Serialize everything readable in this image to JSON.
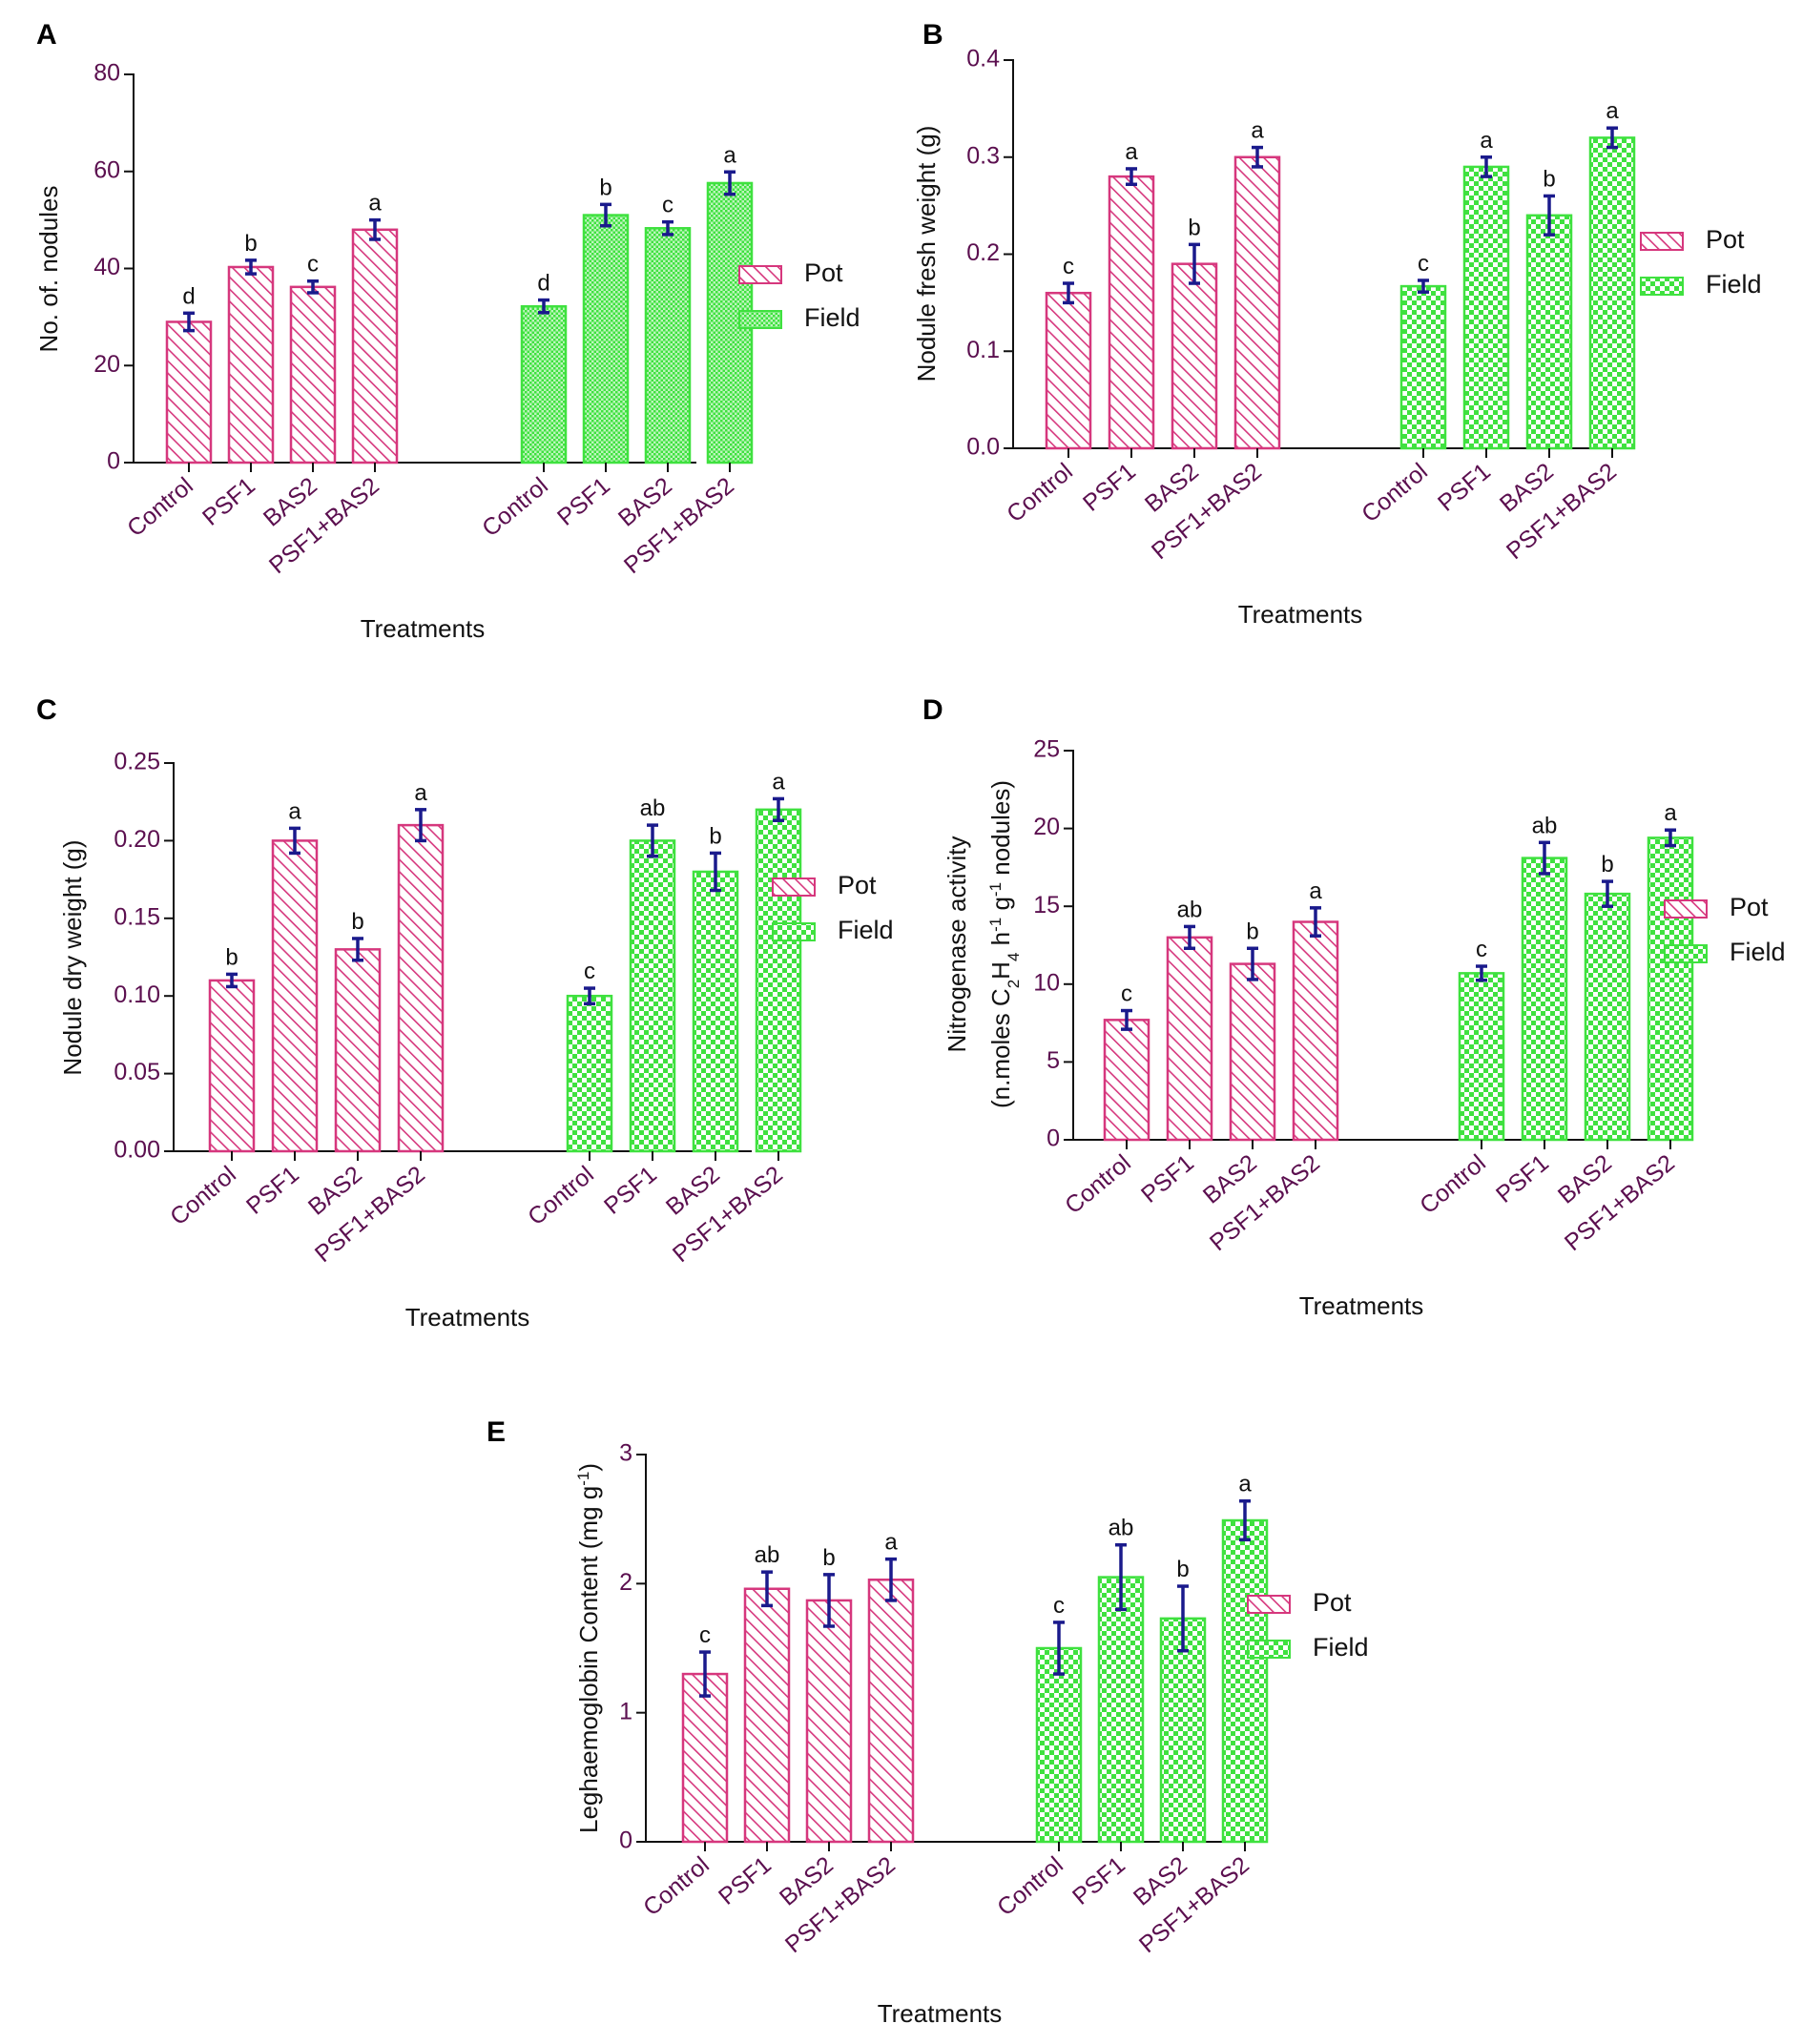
{
  "colors": {
    "pot": "#d6377d",
    "field": "#3fe13f",
    "error_bar": "#1a1a8c",
    "tick_text": "#5b0f4f"
  },
  "chart_data": [
    {
      "id": "A",
      "type": "bar",
      "panel_label": "A",
      "ylabel": "No. of. nodules",
      "xlabel": "Treatments",
      "ylim": [
        0,
        80
      ],
      "yticks": [
        "0",
        "20",
        "40",
        "60",
        "80"
      ],
      "categories": [
        "Control",
        "PSF1",
        "BAS2",
        "PSF1+BAS2"
      ],
      "field_pattern": "fine-dots",
      "series": [
        {
          "name": "Pot",
          "values": [
            29,
            40.3,
            36.2,
            48
          ],
          "errors": [
            1.8,
            1.4,
            1.2,
            2.0
          ],
          "letters": [
            "d",
            "b",
            "c",
            "a"
          ]
        },
        {
          "name": "Field",
          "values": [
            32.2,
            51,
            48.3,
            57.6
          ],
          "errors": [
            1.3,
            2.2,
            1.3,
            2.3
          ],
          "letters": [
            "d",
            "b",
            "c",
            "a"
          ]
        }
      ],
      "legend": [
        "Pot",
        "Field"
      ],
      "legend_position": "right"
    },
    {
      "id": "B",
      "type": "bar",
      "panel_label": "B",
      "ylabel": "Nodule fresh weight (g)",
      "xlabel": "Treatments",
      "ylim": [
        0,
        0.4
      ],
      "yticks": [
        "0.0",
        "0.1",
        "0.2",
        "0.3",
        "0.4"
      ],
      "categories": [
        "Control",
        "PSF1",
        "BAS2",
        "PSF1+BAS2"
      ],
      "field_pattern": "checker",
      "series": [
        {
          "name": "Pot",
          "values": [
            0.16,
            0.28,
            0.19,
            0.3
          ],
          "errors": [
            0.01,
            0.008,
            0.02,
            0.01
          ],
          "letters": [
            "c",
            "a",
            "b",
            "a"
          ]
        },
        {
          "name": "Field",
          "values": [
            0.167,
            0.29,
            0.24,
            0.32
          ],
          "errors": [
            0.006,
            0.01,
            0.02,
            0.01
          ],
          "letters": [
            "c",
            "a",
            "b",
            "a"
          ]
        }
      ],
      "legend": [
        "Pot",
        "Field"
      ],
      "legend_position": "right"
    },
    {
      "id": "C",
      "type": "bar",
      "panel_label": "C",
      "ylabel": "Nodule dry weight (g)",
      "xlabel": "Treatments",
      "ylim": [
        0,
        0.25
      ],
      "yticks": [
        "0.00",
        "0.05",
        "0.10",
        "0.15",
        "0.20",
        "0.25"
      ],
      "categories": [
        "Control",
        "PSF1",
        "BAS2",
        "PSF1+BAS2"
      ],
      "field_pattern": "checker",
      "series": [
        {
          "name": "Pot",
          "values": [
            0.11,
            0.2,
            0.13,
            0.21
          ],
          "errors": [
            0.004,
            0.008,
            0.007,
            0.01
          ],
          "letters": [
            "b",
            "a",
            "b",
            "a"
          ]
        },
        {
          "name": "Field",
          "values": [
            0.1,
            0.2,
            0.18,
            0.22
          ],
          "errors": [
            0.005,
            0.01,
            0.012,
            0.007
          ],
          "letters": [
            "c",
            "ab",
            "b",
            "a"
          ]
        }
      ],
      "legend": [
        "Pot",
        "Field"
      ],
      "legend_position": "right"
    },
    {
      "id": "D",
      "type": "bar",
      "panel_label": "D",
      "ylabel": "Nitrogenase activity",
      "ylabel2_parts": [
        {
          "t": "(n.moles C",
          "s": "n"
        },
        {
          "t": "2",
          "s": "sub"
        },
        {
          "t": "H",
          "s": "n"
        },
        {
          "t": "4",
          "s": "sub"
        },
        {
          "t": " h",
          "s": "n"
        },
        {
          "t": "-1",
          "s": "sup"
        },
        {
          "t": " g",
          "s": "n"
        },
        {
          "t": "-1",
          "s": "sup"
        },
        {
          "t": " nodules)",
          "s": "n"
        }
      ],
      "xlabel": "Treatments",
      "ylim": [
        0,
        25
      ],
      "yticks": [
        "0",
        "5",
        "10",
        "15",
        "20",
        "25"
      ],
      "categories": [
        "Control",
        "PSF1",
        "BAS2",
        "PSF1+BAS2"
      ],
      "field_pattern": "checker",
      "series": [
        {
          "name": "Pot",
          "values": [
            7.7,
            13,
            11.3,
            14
          ],
          "errors": [
            0.6,
            0.7,
            1.0,
            0.9
          ],
          "letters": [
            "c",
            "ab",
            "b",
            "a"
          ]
        },
        {
          "name": "Field",
          "values": [
            10.7,
            18.1,
            15.8,
            19.4
          ],
          "errors": [
            0.45,
            1.0,
            0.8,
            0.5
          ],
          "letters": [
            "c",
            "ab",
            "b",
            "a"
          ]
        }
      ],
      "legend": [
        "Pot",
        "Field"
      ],
      "legend_position": "right"
    },
    {
      "id": "E",
      "type": "bar",
      "panel_label": "E",
      "ylabel_parts": [
        {
          "t": "Leghaemoglobin Content (mg g",
          "s": "n"
        },
        {
          "t": "-1",
          "s": "sup"
        },
        {
          "t": ")",
          "s": "n"
        }
      ],
      "xlabel": "Treatments",
      "ylim": [
        0,
        3
      ],
      "yticks": [
        "0",
        "1",
        "2",
        "3"
      ],
      "categories": [
        "Control",
        "PSF1",
        "BAS2",
        "PSF1+BAS2"
      ],
      "field_pattern": "checker",
      "series": [
        {
          "name": "Pot",
          "values": [
            1.3,
            1.96,
            1.87,
            2.03
          ],
          "errors": [
            0.17,
            0.13,
            0.2,
            0.16
          ],
          "letters": [
            "c",
            "ab",
            "b",
            "a"
          ]
        },
        {
          "name": "Field",
          "values": [
            1.5,
            2.05,
            1.73,
            2.49
          ],
          "errors": [
            0.2,
            0.25,
            0.25,
            0.15
          ],
          "letters": [
            "c",
            "ab",
            "b",
            "a"
          ]
        }
      ],
      "legend": [
        "Pot",
        "Field"
      ],
      "legend_position": "right"
    }
  ]
}
